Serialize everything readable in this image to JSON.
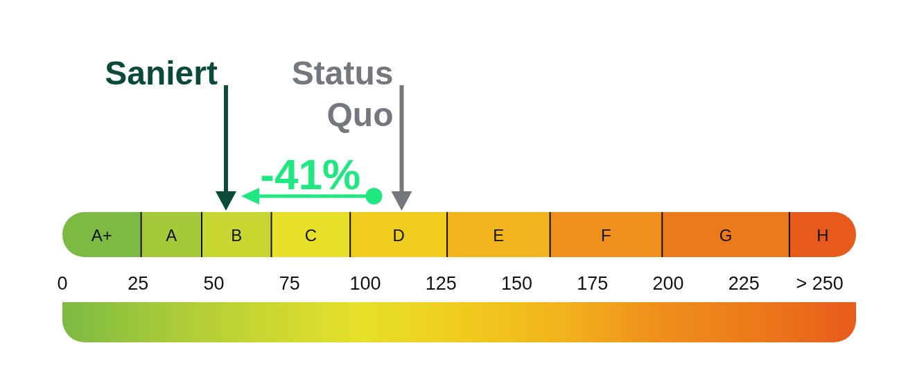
{
  "chart_data": {
    "type": "bar",
    "orientation": "horizontal",
    "stacked": true,
    "categories": [
      null
    ],
    "series": [
      {
        "name": "A+",
        "color": "#7cba43",
        "values": [
          26
        ]
      },
      {
        "name": "A",
        "color": "#a6c93a",
        "values": [
          20
        ]
      },
      {
        "name": "B",
        "color": "#c8d632",
        "values": [
          23
        ]
      },
      {
        "name": "C",
        "color": "#e6e02a",
        "values": [
          26
        ]
      },
      {
        "name": "D",
        "color": "#f0cc1f",
        "values": [
          32
        ]
      },
      {
        "name": "E",
        "color": "#f2b41c",
        "values": [
          34
        ]
      },
      {
        "name": "F",
        "color": "#ef8f1c",
        "values": [
          37
        ]
      },
      {
        "name": "G",
        "color": "#ec7a1a",
        "values": [
          42
        ]
      },
      {
        "name": "H",
        "color": "#e85a1c",
        "values": [
          22
        ]
      }
    ],
    "xlim": [
      0,
      262
    ],
    "xticks": [
      0,
      25,
      50,
      75,
      100,
      125,
      150,
      175,
      200,
      225,
      {
        "value": 250,
        "label": "> 250"
      }
    ],
    "ref_lines": [
      {
        "axis": "x",
        "value": 54,
        "label": "Saniert",
        "color": "#0b4a3a"
      },
      {
        "axis": "x",
        "value": 112,
        "label": "Status Quo",
        "color": "#75777e"
      }
    ],
    "annotations": [
      "-41%"
    ]
  }
}
